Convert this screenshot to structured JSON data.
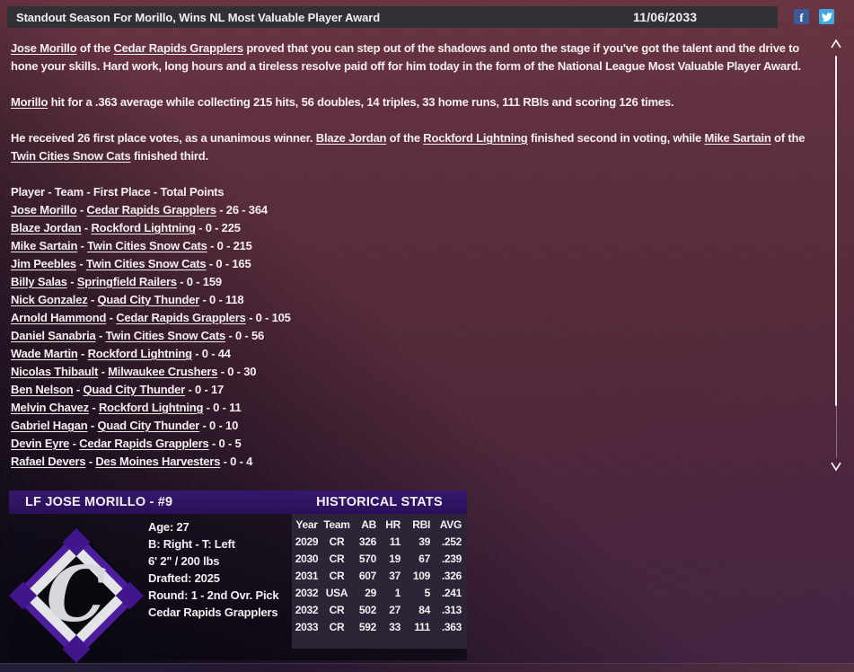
{
  "colors": {
    "header_purple": "#2e1568",
    "logo_purple": "#4c1d9c",
    "facebook_blue": "#3b5a9a",
    "twitter_blue": "#3fa9e0",
    "background_maroon": "#54293a"
  },
  "header": {
    "title": "Standout Season For Morillo, Wins NL Most Valuable Player Award",
    "date": "11/06/2033",
    "facebook_label": "f"
  },
  "article": {
    "paragraphs": [
      [
        {
          "text": "Jose Morillo",
          "link": true
        },
        {
          "text": " of the "
        },
        {
          "text": "Cedar Rapids Grapplers",
          "link": true
        },
        {
          "text": " proved that you can step out of the shadows and onto the stage if you've got the talent and the drive to hone your skills. Hard work, long hours and a tireless resolve paid off for him today in the form of the National League Most Valuable Player Award."
        }
      ],
      [
        {
          "text": "Morillo",
          "link": true
        },
        {
          "text": " hit for a .363 average while collecting 215 hits, 56 doubles, 14 triples, 33 home runs, 111 RBIs and scoring 126 times."
        }
      ],
      [
        {
          "text": "He received 26 first place votes, as a unanimous winner. "
        },
        {
          "text": "Blaze Jordan",
          "link": true
        },
        {
          "text": " of the "
        },
        {
          "text": "Rockford Lightning",
          "link": true
        },
        {
          "text": " finished second in voting, while "
        },
        {
          "text": "Mike Sartain",
          "link": true
        },
        {
          "text": " of the "
        },
        {
          "text": "Twin Cities Snow Cats",
          "link": true
        },
        {
          "text": " finished third."
        }
      ]
    ],
    "list_header": "Player - Team - First Place - Total Points"
  },
  "voting": {
    "rows": [
      {
        "player": "Jose Morillo",
        "team": "Cedar Rapids Grapplers",
        "first": "26",
        "points": "364"
      },
      {
        "player": "Blaze Jordan",
        "team": "Rockford Lightning",
        "first": "0",
        "points": "225"
      },
      {
        "player": "Mike Sartain",
        "team": "Twin Cities Snow Cats",
        "first": "0",
        "points": "215"
      },
      {
        "player": "Jim Peebles",
        "team": "Twin Cities Snow Cats",
        "first": "0",
        "points": "165"
      },
      {
        "player": "Billy Salas",
        "team": "Springfield Railers",
        "first": "0",
        "points": "159"
      },
      {
        "player": "Nick Gonzalez",
        "team": "Quad City Thunder",
        "first": "0",
        "points": "118"
      },
      {
        "player": "Arnold Hammond",
        "team": "Cedar Rapids Grapplers",
        "first": "0",
        "points": "105"
      },
      {
        "player": "Daniel Sanabria",
        "team": "Twin Cities Snow Cats",
        "first": "0",
        "points": "56"
      },
      {
        "player": "Wade Martin",
        "team": "Rockford Lightning",
        "first": "0",
        "points": "44"
      },
      {
        "player": "Nicolas Thibault",
        "team": "Milwaukee Crushers",
        "first": "0",
        "points": "30"
      },
      {
        "player": "Ben Nelson",
        "team": "Quad City Thunder",
        "first": "0",
        "points": "17"
      },
      {
        "player": "Melvin Chavez",
        "team": "Rockford Lightning",
        "first": "0",
        "points": "11"
      },
      {
        "player": "Gabriel Hagan",
        "team": "Quad City Thunder",
        "first": "0",
        "points": "10"
      },
      {
        "player": "Devin Eyre",
        "team": "Cedar Rapids Grapplers",
        "first": "0",
        "points": "5"
      },
      {
        "player": "Rafael Devers",
        "team": "Des Moines Harvesters",
        "first": "0",
        "points": "4"
      }
    ]
  },
  "player_card": {
    "title": "LF JOSE MORILLO - #9",
    "stats_title": "HISTORICAL STATS",
    "logo_letter": "C",
    "info": [
      "Age: 27",
      "B: Right - T: Left",
      "6' 2\" / 200 lbs",
      "Drafted: 2025",
      "Round: 1 - 2nd Ovr. Pick",
      "Cedar Rapids Grapplers"
    ],
    "stats": {
      "headers": [
        "Year",
        "Team",
        "AB",
        "HR",
        "RBI",
        "AVG"
      ],
      "rows": [
        [
          "2029",
          "CR",
          "326",
          "11",
          "39",
          ".252"
        ],
        [
          "2030",
          "CR",
          "570",
          "19",
          "67",
          ".239"
        ],
        [
          "2031",
          "CR",
          "607",
          "37",
          "109",
          ".326"
        ],
        [
          "2032",
          "USA",
          "29",
          "1",
          "5",
          ".241"
        ],
        [
          "2032",
          "CR",
          "502",
          "27",
          "84",
          ".313"
        ],
        [
          "2033",
          "CR",
          "592",
          "33",
          "111",
          ".363"
        ]
      ]
    }
  }
}
